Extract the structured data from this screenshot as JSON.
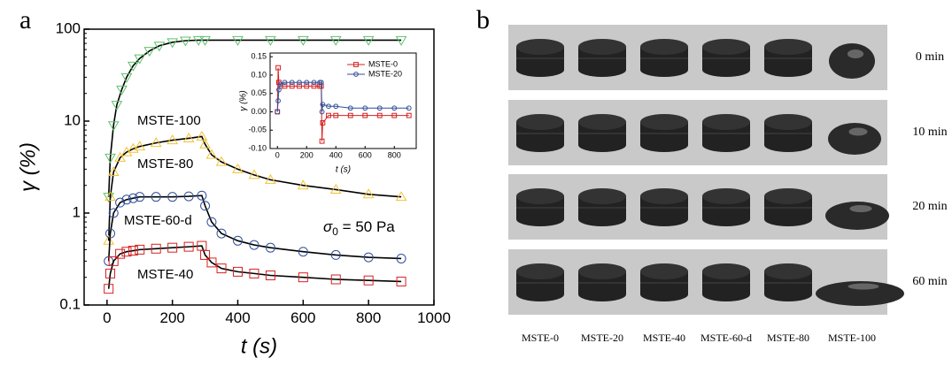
{
  "panel_a": {
    "label": "a",
    "chart_data": {
      "type": "scatter",
      "x_label": "t (s)",
      "y_label": "γ (%)",
      "log_y": true,
      "xlim": [
        -70,
        1000
      ],
      "ylim": [
        0.1,
        100
      ],
      "xticks": [
        0,
        200,
        400,
        600,
        800,
        1000
      ],
      "yticks": [
        0.1,
        1,
        10,
        100
      ],
      "annotation": {
        "symbol": "σ",
        "sub": "0",
        "rest": " = 50 Pa"
      },
      "series": [
        {
          "name": "MSTE-100",
          "color": "#5cc26a",
          "marker": "tri-down",
          "x": [
            5,
            10,
            20,
            30,
            45,
            60,
            80,
            100,
            130,
            160,
            200,
            240,
            280,
            300,
            400,
            500,
            600,
            700,
            800,
            900
          ],
          "values": [
            1.5,
            4,
            9,
            15,
            22,
            30,
            40,
            48,
            58,
            66,
            72,
            75,
            76,
            76,
            76,
            76,
            76,
            76,
            76,
            76
          ]
        },
        {
          "name": "MSTE-80",
          "color": "#f2c230",
          "marker": "tri-up",
          "x": [
            5,
            10,
            20,
            40,
            60,
            80,
            100,
            150,
            200,
            250,
            290,
            300,
            320,
            350,
            400,
            450,
            500,
            600,
            700,
            800,
            900
          ],
          "values": [
            0.5,
            1.5,
            2.8,
            4.0,
            4.6,
            5.0,
            5.3,
            5.8,
            6.2,
            6.5,
            6.8,
            5.6,
            4.3,
            3.6,
            3.0,
            2.6,
            2.3,
            2.0,
            1.8,
            1.6,
            1.5
          ]
        },
        {
          "name": "MSTE-60-d",
          "color": "#2f4f9a",
          "marker": "circle",
          "x": [
            5,
            10,
            20,
            40,
            60,
            80,
            100,
            150,
            200,
            250,
            290,
            300,
            320,
            350,
            400,
            450,
            500,
            600,
            700,
            800,
            900
          ],
          "values": [
            0.3,
            0.6,
            1.0,
            1.3,
            1.4,
            1.45,
            1.5,
            1.5,
            1.5,
            1.52,
            1.55,
            1.2,
            0.8,
            0.6,
            0.5,
            0.45,
            0.42,
            0.38,
            0.35,
            0.33,
            0.32
          ]
        },
        {
          "name": "MSTE-40",
          "color": "#d62020",
          "marker": "square",
          "x": [
            5,
            10,
            20,
            40,
            60,
            80,
            100,
            150,
            200,
            250,
            290,
            300,
            320,
            350,
            400,
            450,
            500,
            600,
            700,
            800,
            900
          ],
          "values": [
            0.15,
            0.22,
            0.3,
            0.36,
            0.38,
            0.39,
            0.4,
            0.41,
            0.42,
            0.43,
            0.44,
            0.35,
            0.29,
            0.25,
            0.23,
            0.22,
            0.21,
            0.2,
            0.19,
            0.185,
            0.18
          ]
        }
      ]
    },
    "inset": {
      "type": "line",
      "x_label": "t (s)",
      "y_label": "γ (%)",
      "xlim": [
        -50,
        950
      ],
      "ylim": [
        -0.1,
        0.16
      ],
      "xticks": [
        0,
        200,
        400,
        600,
        800
      ],
      "yticks": [
        {
          "value": -0.1,
          "label": "-0.10"
        },
        {
          "value": -0.05,
          "label": "-0.05"
        },
        {
          "value": 0,
          "label": "0.00"
        },
        {
          "value": 0.05,
          "label": "0.05"
        },
        {
          "value": 0.1,
          "label": "0.10"
        },
        {
          "value": 0.15,
          "label": "0.15"
        }
      ],
      "series": [
        {
          "name": "MSTE-0",
          "color": "#d62020",
          "marker": "square",
          "x": [
            0,
            5,
            10,
            20,
            50,
            100,
            150,
            200,
            250,
            290,
            300,
            305,
            310,
            350,
            400,
            500,
            600,
            700,
            800,
            900
          ],
          "values": [
            0,
            0.12,
            0.08,
            0.07,
            0.07,
            0.07,
            0.07,
            0.07,
            0.07,
            0.07,
            0.07,
            -0.08,
            -0.03,
            -0.01,
            -0.01,
            -0.01,
            -0.01,
            -0.01,
            -0.01,
            -0.01
          ]
        },
        {
          "name": "MSTE-20",
          "color": "#2f4f9a",
          "marker": "circle",
          "x": [
            0,
            5,
            10,
            20,
            50,
            100,
            150,
            200,
            250,
            290,
            300,
            305,
            310,
            350,
            400,
            500,
            600,
            700,
            800,
            900
          ],
          "values": [
            0,
            0.03,
            0.06,
            0.075,
            0.08,
            0.08,
            0.08,
            0.08,
            0.08,
            0.08,
            0.08,
            0,
            0.02,
            0.015,
            0.015,
            0.01,
            0.01,
            0.01,
            0.01,
            0.01
          ]
        }
      ]
    }
  },
  "panel_b": {
    "label": "b",
    "rows": [
      "0 min",
      "10 min",
      "20 min",
      "60 min"
    ],
    "columns": [
      "MSTE-0",
      "MSTE-20",
      "MSTE-40",
      "MSTE-60-d",
      "MSTE-80",
      "MSTE-100"
    ]
  }
}
